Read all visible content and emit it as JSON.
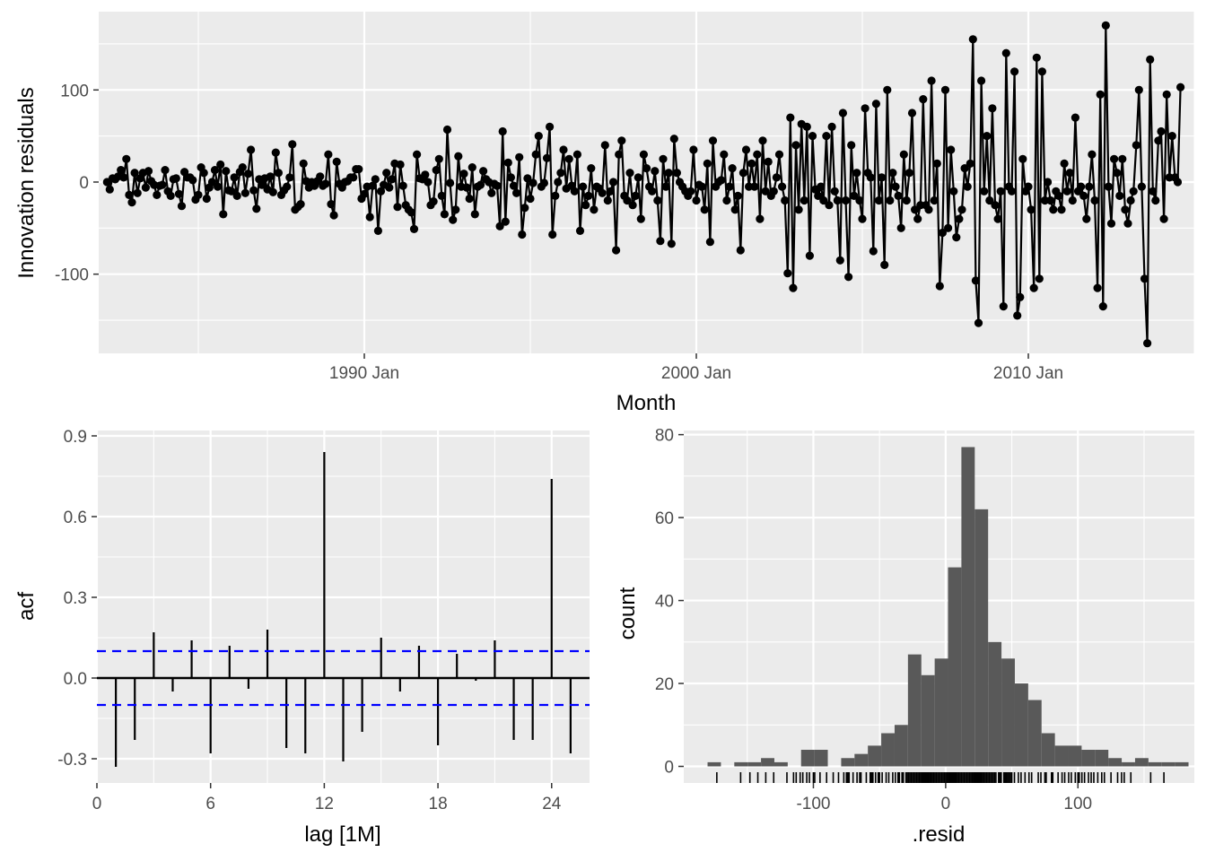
{
  "colors": {
    "panel_bg": "#ebebeb",
    "grid": "#ffffff",
    "series": "#000000",
    "ci": "#0000ff",
    "hist_fill": "#595959",
    "tick_text": "#4d4d4d"
  },
  "chart_data": [
    {
      "type": "line",
      "xlabel": "Month",
      "ylabel": "Innovation residuals",
      "x_ticks": [
        "1990 Jan",
        "2000 Jan",
        "2010 Jan"
      ],
      "y_ticks": [
        "100",
        "0",
        "-100"
      ],
      "x_range": [
        "1982 Jan",
        "2015 Jan"
      ],
      "y_range": [
        -186,
        185
      ],
      "grid": true,
      "points": true,
      "series": [
        {
          "start": "1982 Apr",
          "frequency": "monthly",
          "values": [
            0,
            -8,
            4,
            3,
            6,
            13,
            5,
            25,
            -14,
            -22,
            10,
            -12,
            4,
            10,
            -6,
            12,
            1,
            -3,
            -14,
            -4,
            -3,
            13,
            -10,
            -15,
            3,
            4,
            -13,
            -26,
            11,
            5,
            5,
            2,
            -19,
            -14,
            16,
            10,
            -18,
            -6,
            0,
            13,
            -5,
            19,
            -35,
            12,
            -9,
            -10,
            5,
            -15,
            11,
            16,
            -12,
            9,
            35,
            -9,
            -29,
            3,
            -3,
            4,
            -8,
            6,
            -11,
            32,
            10,
            -14,
            -9,
            -5,
            5,
            41,
            -30,
            -27,
            -24,
            20,
            1,
            -6,
            0,
            -4,
            1,
            6,
            -4,
            -2,
            30,
            -24,
            -36,
            22,
            -2,
            -6,
            0,
            1,
            5,
            5,
            14,
            14,
            -18,
            -13,
            -5,
            -38,
            -4,
            3,
            -53,
            -10,
            -3,
            10,
            -6,
            3,
            20,
            -27,
            19,
            -4,
            -25,
            -30,
            -33,
            -51,
            30,
            4,
            3,
            8,
            0,
            -25,
            -21,
            13,
            25,
            -15,
            -35,
            57,
            -1,
            -41,
            -30,
            28,
            -5,
            9,
            -6,
            -18,
            16,
            -35,
            -5,
            -3,
            12,
            3,
            0,
            -12,
            -2,
            -4,
            -48,
            55,
            -43,
            21,
            5,
            -4,
            -12,
            27,
            -57,
            -28,
            4,
            -18,
            -1,
            30,
            50,
            -5,
            -1,
            26,
            60,
            -57,
            -15,
            0,
            10,
            35,
            -7,
            25,
            -4,
            -10,
            30,
            -53,
            -5,
            -25,
            -15,
            15,
            -30,
            -5,
            -7,
            -12,
            40,
            -20,
            -10,
            0,
            -74,
            30,
            45,
            -15,
            -20,
            10,
            -25,
            -15,
            5,
            -40,
            30,
            15,
            -5,
            -10,
            12,
            -20,
            -64,
            25,
            -5,
            10,
            -67,
            47,
            10,
            0,
            -5,
            -10,
            -15,
            -10,
            35,
            -20,
            -3,
            -5,
            -30,
            20,
            -65,
            45,
            -5,
            0,
            2,
            30,
            -20,
            -5,
            15,
            -30,
            -15,
            -74,
            10,
            35,
            -5,
            20,
            -5,
            30,
            -40,
            45,
            -10,
            22,
            -15,
            -10,
            5,
            30,
            -5,
            -20,
            -99,
            70,
            -115,
            40,
            -30,
            63,
            -20,
            60,
            -80,
            50,
            -8,
            -15,
            -5,
            -20,
            50,
            -25,
            60,
            -10,
            -20,
            -85,
            75,
            -20,
            -103,
            40,
            -15,
            10,
            -20,
            -40,
            80,
            10,
            5,
            -75,
            85,
            -20,
            5,
            -90,
            100,
            -20,
            10,
            -5,
            -15,
            -50,
            30,
            -20,
            10,
            75,
            -30,
            -40,
            -25,
            90,
            -25,
            -30,
            110,
            -20,
            20,
            -113,
            -55,
            100,
            -50,
            35,
            -10,
            -60,
            -40,
            -30,
            15,
            -5,
            20,
            155,
            -107,
            -153,
            110,
            -10,
            50,
            -20,
            80,
            -25,
            -40,
            -10,
            -135,
            140,
            -5,
            -10,
            120,
            -145,
            -125,
            25,
            -10,
            -5,
            -30,
            -115,
            135,
            -105,
            120,
            -20,
            0,
            -20,
            -30,
            -10,
            -15,
            -30,
            20,
            -10,
            10,
            -20,
            70,
            -10,
            -5,
            -15,
            -40,
            -5,
            30,
            -20,
            -115,
            95,
            -135,
            170,
            -5,
            -45,
            25,
            10,
            -15,
            25,
            -30,
            -45,
            -20,
            -10,
            40,
            100,
            -5,
            -105,
            -175,
            133,
            -10,
            -20,
            45,
            55,
            -40,
            95,
            5,
            50,
            5,
            0,
            103
          ]
        }
      ]
    },
    {
      "type": "bar",
      "title": "",
      "xlabel": "lag [1M]",
      "ylabel": "acf",
      "x_ticks": [
        "0",
        "6",
        "12",
        "18",
        "24"
      ],
      "y_ticks": [
        "0.9",
        "0.6",
        "0.3",
        "0.0",
        "-0.3"
      ],
      "xlim": [
        0,
        26
      ],
      "ylim": [
        -0.39,
        0.92
      ],
      "ci_bounds": [
        0.1,
        -0.1
      ],
      "grid": true,
      "categories": [
        1,
        2,
        3,
        4,
        5,
        6,
        7,
        8,
        9,
        10,
        11,
        12,
        13,
        14,
        15,
        16,
        17,
        18,
        19,
        20,
        21,
        22,
        23,
        24,
        25
      ],
      "values": [
        -0.33,
        -0.23,
        0.17,
        -0.05,
        0.14,
        -0.28,
        0.12,
        -0.04,
        0.18,
        -0.26,
        -0.28,
        0.84,
        -0.31,
        -0.2,
        0.15,
        -0.05,
        0.12,
        -0.25,
        0.09,
        -0.01,
        0.14,
        -0.23,
        -0.23,
        0.74,
        -0.28
      ]
    },
    {
      "type": "bar",
      "title": "",
      "xlabel": ".resid",
      "ylabel": "count",
      "x_ticks": [
        "-100",
        "0",
        "100"
      ],
      "y_ticks": [
        "80",
        "60",
        "40",
        "20",
        "0"
      ],
      "xlim": [
        -198,
        188
      ],
      "ylim": [
        -4,
        81
      ],
      "grid": true,
      "bin_edges_start": -180,
      "bin_width": 10.1,
      "values": [
        1,
        0,
        1,
        1,
        2,
        1,
        0,
        4,
        4,
        0,
        2,
        3,
        5,
        8,
        10,
        27,
        22,
        26,
        48,
        77,
        62,
        30,
        26,
        20,
        16,
        8,
        5,
        5,
        4,
        4,
        2,
        1,
        2,
        1,
        1,
        1
      ],
      "rug": [
        -173,
        -155,
        -148,
        -142,
        -136,
        -130,
        -120,
        -115,
        -113,
        -110,
        -108,
        -105,
        -103,
        -100,
        -99,
        -95,
        -90,
        -85,
        -81,
        -77,
        -75,
        -74,
        -73,
        -70,
        -67,
        -65,
        -64,
        -60,
        -57,
        -57,
        -56,
        -55,
        -53,
        -51,
        -50,
        -48,
        -45,
        -43,
        -40,
        -38,
        -36,
        -35,
        -33,
        -32,
        -30,
        -29,
        -28,
        -27,
        -26,
        -25,
        -24,
        -23,
        -22,
        -21,
        -20,
        -19,
        -18,
        -17,
        -16,
        -15,
        -14,
        -13,
        -12,
        -11,
        -10,
        -9,
        -8,
        -7,
        -6,
        -5,
        -4,
        -3,
        -2,
        -1,
        0,
        1,
        2,
        3,
        4,
        5,
        6,
        7,
        8,
        9,
        10,
        11,
        12,
        13,
        14,
        15,
        16,
        17,
        18,
        19,
        20,
        21,
        22,
        23,
        24,
        25,
        26,
        27,
        28,
        29,
        30,
        31,
        32,
        33,
        34,
        35,
        36,
        37,
        38,
        40,
        41,
        42,
        44,
        45,
        46,
        47,
        48,
        49,
        50,
        52,
        55,
        57,
        60,
        63,
        65,
        70,
        72,
        75,
        76,
        80,
        81,
        85,
        88,
        90,
        93,
        95,
        98,
        100,
        101,
        103,
        105,
        108,
        110,
        112,
        115,
        118,
        120,
        125,
        130,
        133,
        135,
        140,
        155,
        165
      ]
    }
  ]
}
